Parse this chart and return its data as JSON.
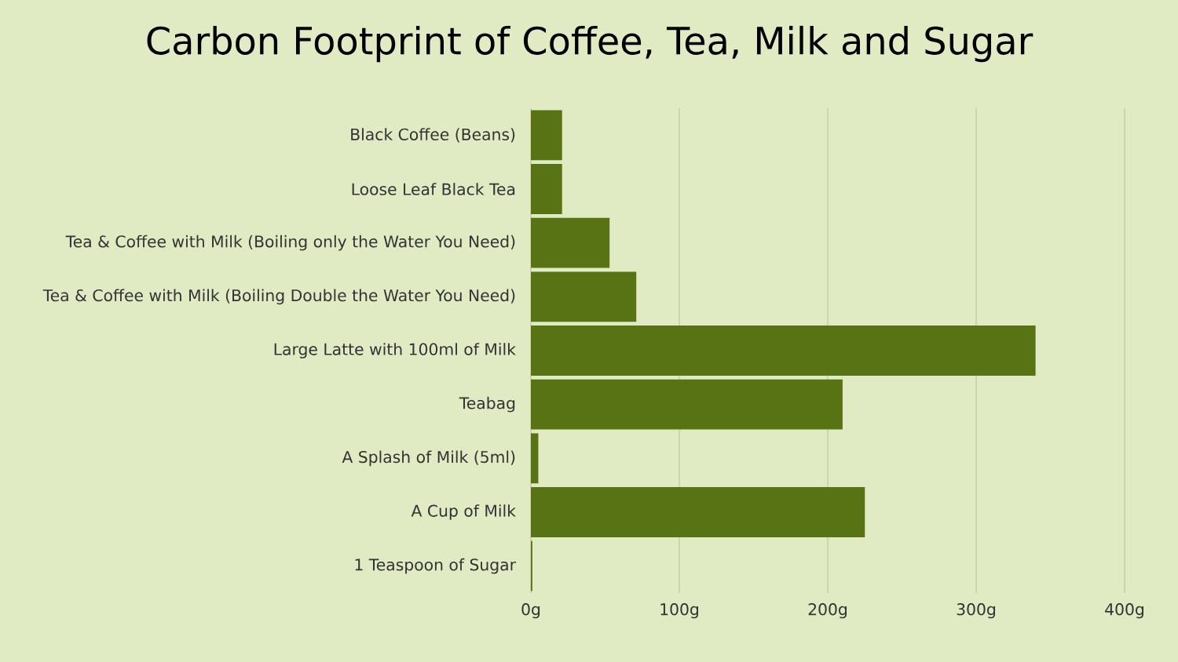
{
  "chart_data": {
    "type": "bar",
    "title": "Carbon Footprint of Coffee, Tea, Milk and Sugar",
    "orientation": "horizontal",
    "categories": [
      "Black Coffee (Beans)",
      "Loose Leaf Black Tea",
      "Tea & Coffee with Milk (Boiling only the Water You Need)",
      "Tea & Coffee with Milk (Boiling Double the Water You Need)",
      "Large Latte with 100ml of Milk",
      "Teabag",
      "A Splash of Milk (5ml)",
      "A Cup of Milk",
      "1 Teaspoon of Sugar"
    ],
    "values": [
      21,
      21,
      53,
      71,
      340,
      210,
      5,
      225,
      1
    ],
    "color": "#587314",
    "xlim": [
      0,
      400
    ],
    "xticks": [
      {
        "value": 0,
        "label": "0g"
      },
      {
        "value": 100,
        "label": "100g"
      },
      {
        "value": 200,
        "label": "200g"
      },
      {
        "value": 300,
        "label": "300g"
      },
      {
        "value": 400,
        "label": "400g"
      }
    ],
    "grid": "x"
  }
}
